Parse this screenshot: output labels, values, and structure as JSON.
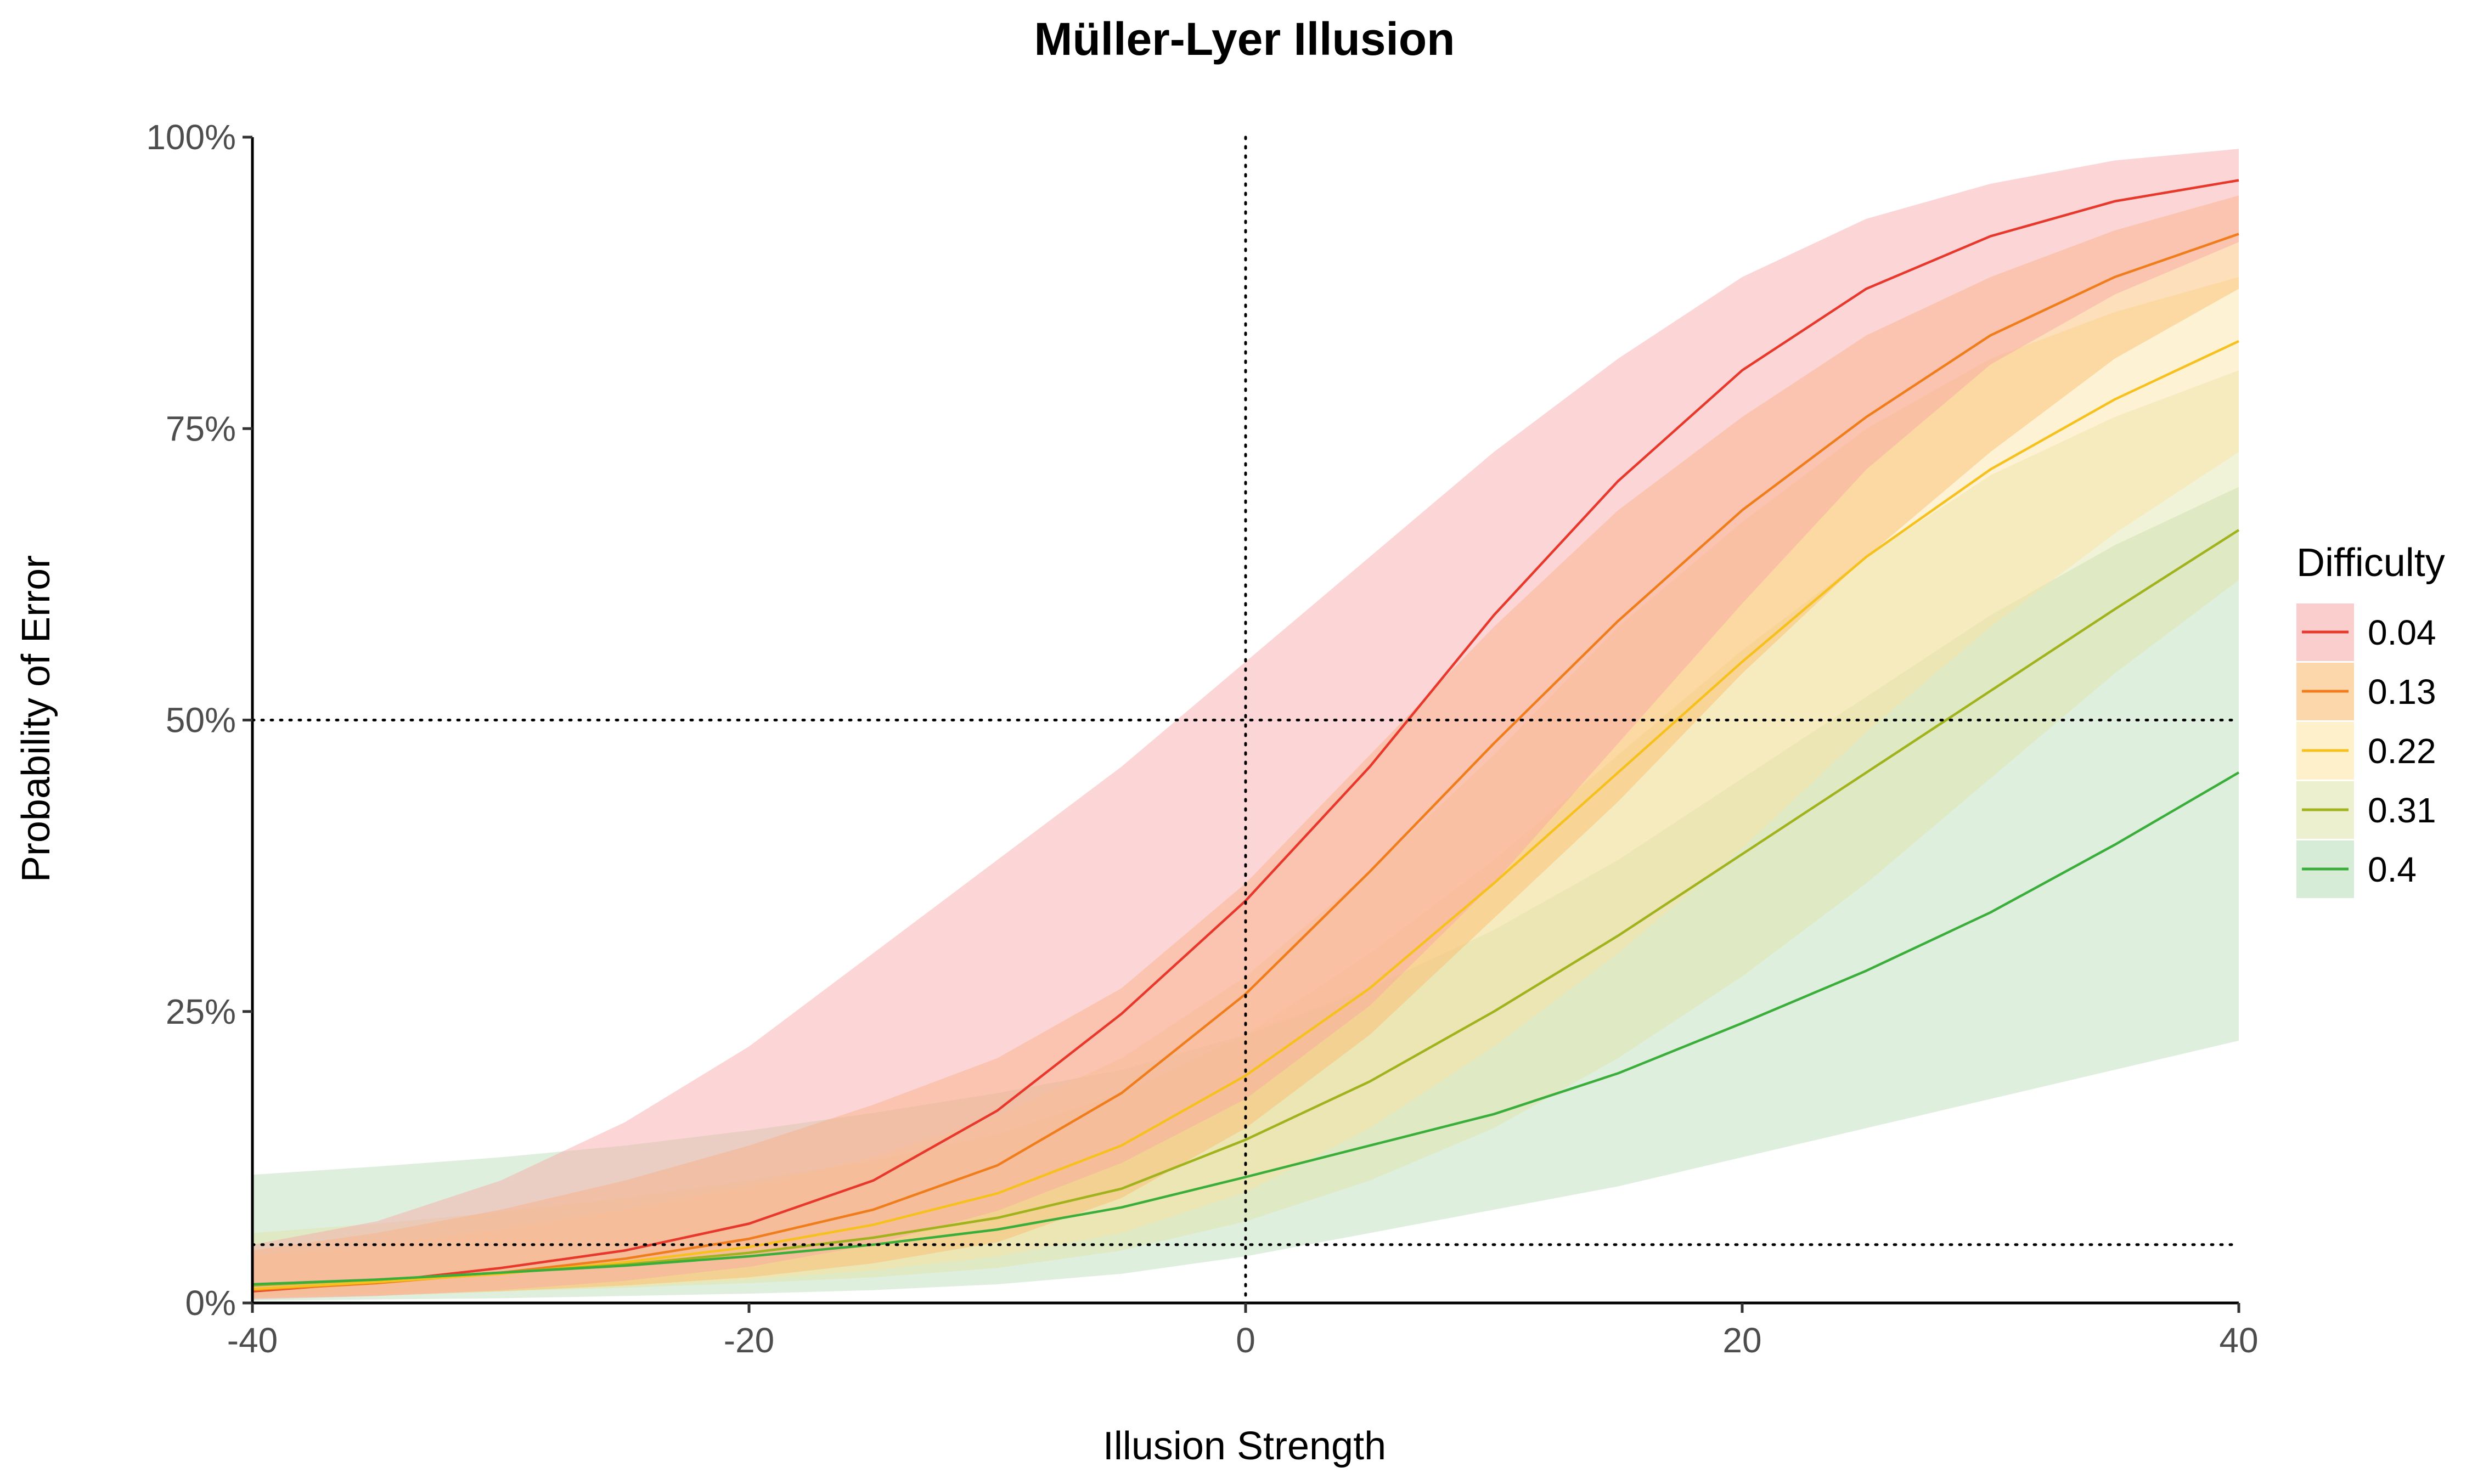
{
  "chart_data": {
    "type": "line",
    "title": "Müller-Lyer Illusion",
    "xlabel": "Illusion Strength",
    "ylabel": "Probability of Error",
    "xlim": [
      -40,
      40
    ],
    "ylim": [
      0,
      1
    ],
    "x_ticks": [
      -40,
      -20,
      0,
      20,
      40
    ],
    "x_tick_labels": [
      "-40",
      "-20",
      "0",
      "20",
      "40"
    ],
    "y_ticks": [
      0,
      0.25,
      0.5,
      0.75,
      1
    ],
    "y_tick_labels": [
      "0%",
      "25%",
      "50%",
      "75%",
      "100%"
    ],
    "reference_lines": {
      "vertical_x": 0,
      "horizontal_y": [
        0.5,
        0.05
      ],
      "style": "dotted"
    },
    "grid": false,
    "legend": {
      "title": "Difficulty",
      "placement": "right"
    },
    "series": [
      {
        "name": "0.04",
        "color": "#e8372b",
        "fill": "#f8a5a5",
        "x": [
          -40,
          -35,
          -30,
          -25,
          -20,
          -15,
          -10,
          -5,
          0,
          5,
          10,
          15,
          20,
          25,
          30,
          35,
          40
        ],
        "y": [
          0.01,
          0.018,
          0.03,
          0.045,
          0.068,
          0.105,
          0.165,
          0.248,
          0.345,
          0.46,
          0.59,
          0.705,
          0.8,
          0.87,
          0.915,
          0.945,
          0.963
        ],
        "lower": [
          0.003,
          0.006,
          0.011,
          0.019,
          0.031,
          0.05,
          0.079,
          0.12,
          0.175,
          0.255,
          0.36,
          0.48,
          0.6,
          0.715,
          0.805,
          0.865,
          0.91
        ],
        "upper": [
          0.05,
          0.07,
          0.105,
          0.155,
          0.22,
          0.3,
          0.38,
          0.46,
          0.55,
          0.64,
          0.73,
          0.81,
          0.88,
          0.93,
          0.96,
          0.98,
          0.99
        ]
      },
      {
        "name": "0.13",
        "color": "#f07d1c",
        "fill": "#fbb768",
        "x": [
          -40,
          -35,
          -30,
          -25,
          -20,
          -15,
          -10,
          -5,
          0,
          5,
          10,
          15,
          20,
          25,
          30,
          35,
          40
        ],
        "y": [
          0.011,
          0.017,
          0.026,
          0.038,
          0.055,
          0.08,
          0.118,
          0.18,
          0.265,
          0.37,
          0.48,
          0.585,
          0.68,
          0.76,
          0.83,
          0.88,
          0.917
        ],
        "lower": [
          0.004,
          0.006,
          0.01,
          0.015,
          0.022,
          0.034,
          0.052,
          0.09,
          0.15,
          0.23,
          0.33,
          0.43,
          0.54,
          0.64,
          0.73,
          0.81,
          0.87
        ],
        "upper": [
          0.045,
          0.06,
          0.08,
          0.105,
          0.135,
          0.17,
          0.21,
          0.27,
          0.36,
          0.47,
          0.58,
          0.68,
          0.76,
          0.83,
          0.88,
          0.92,
          0.95
        ]
      },
      {
        "name": "0.22",
        "color": "#f6c01d",
        "fill": "#fde3a0",
        "x": [
          -40,
          -35,
          -30,
          -25,
          -20,
          -15,
          -10,
          -5,
          0,
          5,
          10,
          15,
          20,
          25,
          30,
          35,
          40
        ],
        "y": [
          0.012,
          0.018,
          0.025,
          0.035,
          0.048,
          0.067,
          0.094,
          0.135,
          0.195,
          0.27,
          0.36,
          0.455,
          0.55,
          0.64,
          0.715,
          0.775,
          0.825
        ],
        "lower": [
          0.004,
          0.007,
          0.01,
          0.014,
          0.02,
          0.028,
          0.04,
          0.06,
          0.095,
          0.15,
          0.22,
          0.3,
          0.39,
          0.49,
          0.58,
          0.66,
          0.73
        ],
        "upper": [
          0.04,
          0.05,
          0.063,
          0.08,
          0.1,
          0.125,
          0.16,
          0.21,
          0.28,
          0.37,
          0.47,
          0.58,
          0.67,
          0.75,
          0.81,
          0.85,
          0.88
        ]
      },
      {
        "name": "0.31",
        "color": "#a0b21c",
        "fill": "#dfe4a8",
        "x": [
          -40,
          -35,
          -30,
          -25,
          -20,
          -15,
          -10,
          -5,
          0,
          5,
          10,
          15,
          20,
          25,
          30,
          35,
          40
        ],
        "y": [
          0.015,
          0.02,
          0.026,
          0.033,
          0.043,
          0.056,
          0.073,
          0.098,
          0.14,
          0.19,
          0.25,
          0.315,
          0.385,
          0.455,
          0.525,
          0.595,
          0.663
        ],
        "lower": [
          0.006,
          0.008,
          0.01,
          0.013,
          0.017,
          0.022,
          0.03,
          0.045,
          0.07,
          0.105,
          0.15,
          0.21,
          0.28,
          0.36,
          0.45,
          0.54,
          0.62
        ],
        "upper": [
          0.06,
          0.068,
          0.078,
          0.09,
          0.105,
          0.122,
          0.145,
          0.18,
          0.23,
          0.3,
          0.38,
          0.47,
          0.56,
          0.64,
          0.71,
          0.76,
          0.8
        ]
      },
      {
        "name": "0.4",
        "color": "#3aad3a",
        "fill": "#b6dcb4",
        "x": [
          -40,
          -35,
          -30,
          -25,
          -20,
          -15,
          -10,
          -5,
          0,
          5,
          10,
          15,
          20,
          25,
          30,
          35,
          40
        ],
        "y": [
          0.016,
          0.02,
          0.026,
          0.032,
          0.04,
          0.05,
          0.063,
          0.082,
          0.108,
          0.135,
          0.162,
          0.197,
          0.24,
          0.285,
          0.335,
          0.393,
          0.455
        ],
        "lower": [
          0.002,
          0.003,
          0.004,
          0.006,
          0.008,
          0.011,
          0.016,
          0.025,
          0.04,
          0.06,
          0.08,
          0.1,
          0.125,
          0.15,
          0.175,
          0.2,
          0.225
        ],
        "upper": [
          0.11,
          0.117,
          0.125,
          0.135,
          0.148,
          0.163,
          0.18,
          0.2,
          0.23,
          0.27,
          0.32,
          0.38,
          0.45,
          0.52,
          0.59,
          0.65,
          0.7
        ]
      }
    ]
  }
}
